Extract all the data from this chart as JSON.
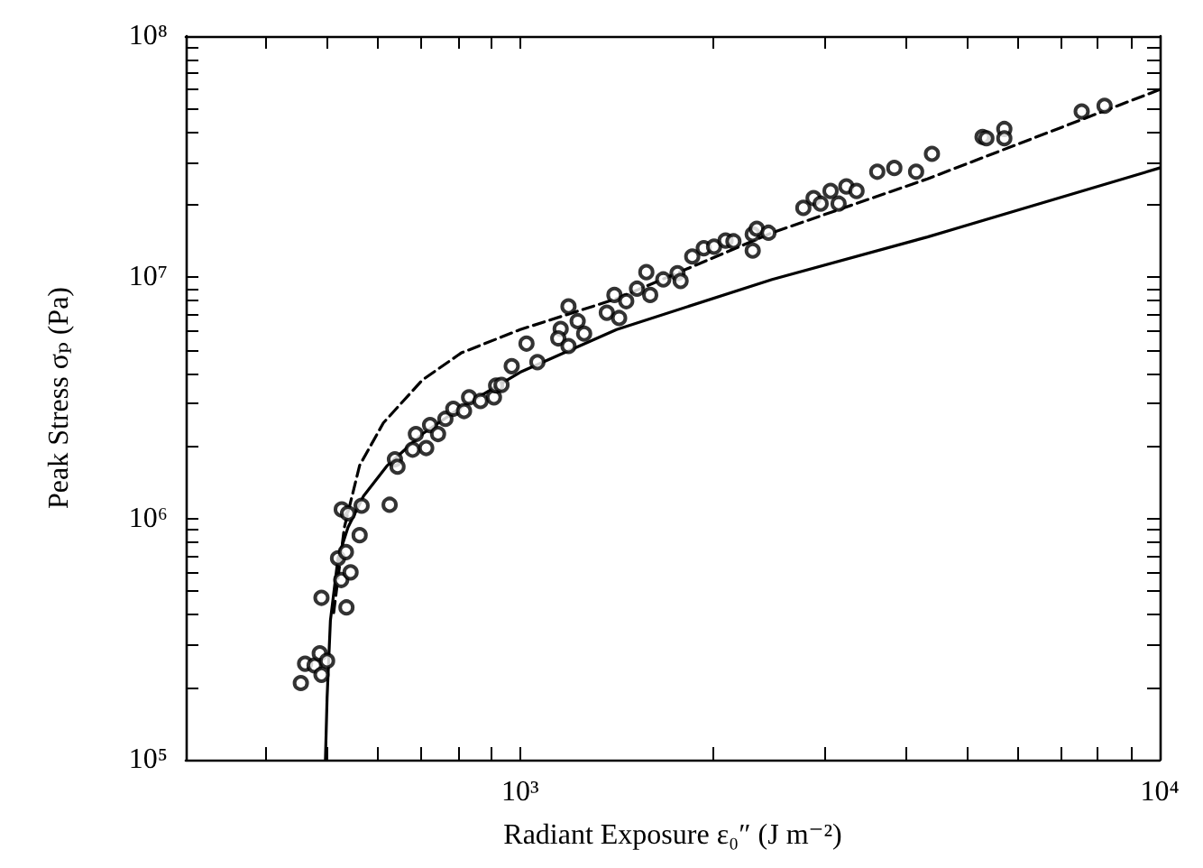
{
  "chart_data": {
    "type": "scatter",
    "xlabel": "Radiant Exposure ε₀″ (J m⁻²)",
    "ylabel": "Peak Stress σₚ (Pa)",
    "log": "xy",
    "marker": "circle",
    "xlim": [
      300,
      10000
    ],
    "ylim": [
      100000,
      100000000
    ],
    "xticks": [
      {
        "value": 400,
        "label": null
      },
      {
        "value": 500,
        "label": null
      },
      {
        "value": 600,
        "label": null
      },
      {
        "value": 700,
        "label": null
      },
      {
        "value": 800,
        "label": null
      },
      {
        "value": 900,
        "label": null
      },
      {
        "value": 1000,
        "label": "10³"
      },
      {
        "value": 2000,
        "label": null
      },
      {
        "value": 3000,
        "label": null
      },
      {
        "value": 4000,
        "label": null
      },
      {
        "value": 5000,
        "label": null
      },
      {
        "value": 6000,
        "label": null
      },
      {
        "value": 7000,
        "label": null
      },
      {
        "value": 8000,
        "label": null
      },
      {
        "value": 9000,
        "label": null
      },
      {
        "value": 10000,
        "label": "10⁴"
      }
    ],
    "yticks": [
      {
        "value": 100000,
        "label": "10⁵"
      },
      {
        "value": 200000,
        "label": null
      },
      {
        "value": 300000,
        "label": null
      },
      {
        "value": 400000,
        "label": null
      },
      {
        "value": 500000,
        "label": null
      },
      {
        "value": 600000,
        "label": null
      },
      {
        "value": 700000,
        "label": null
      },
      {
        "value": 800000,
        "label": null
      },
      {
        "value": 900000,
        "label": null
      },
      {
        "value": 1000000,
        "label": "10⁶"
      },
      {
        "value": 2000000,
        "label": null
      },
      {
        "value": 3000000,
        "label": null
      },
      {
        "value": 4000000,
        "label": null
      },
      {
        "value": 5000000,
        "label": null
      },
      {
        "value": 6000000,
        "label": null
      },
      {
        "value": 7000000,
        "label": null
      },
      {
        "value": 8000000,
        "label": null
      },
      {
        "value": 9000000,
        "label": null
      },
      {
        "value": 10000000,
        "label": "10⁷"
      },
      {
        "value": 20000000,
        "label": null
      },
      {
        "value": 30000000,
        "label": null
      },
      {
        "value": 40000000,
        "label": null
      },
      {
        "value": 50000000,
        "label": null
      },
      {
        "value": 60000000,
        "label": null
      },
      {
        "value": 70000000,
        "label": null
      },
      {
        "value": 80000000,
        "label": null
      },
      {
        "value": 90000000,
        "label": null
      },
      {
        "value": 100000000,
        "label": "10⁸"
      }
    ],
    "series": [
      {
        "type": "line",
        "line_style": "solid",
        "marker": "none",
        "color": "#000000",
        "x": [
          496,
          499,
          505,
          519,
          538,
          569,
          620,
          703,
          809,
          1000,
          1415,
          2477,
          4335,
          10000
        ],
        "values": [
          100000,
          181000,
          378000,
          684000,
          919000,
          1240000,
          1660000,
          2240000,
          2890000,
          4040000,
          6070000,
          9800000,
          14700000,
          28400000
        ]
      },
      {
        "type": "line",
        "line_style": "dashed",
        "marker": "none",
        "color": "#000000",
        "x": [
          511,
          531,
          561,
          611,
          703,
          809,
          1000,
          1415,
          2477,
          4335,
          10000
        ],
        "values": [
          407000,
          919000,
          1660000,
          2490000,
          3750000,
          4860000,
          6070000,
          8150000,
          15300000,
          25600000,
          60000000
        ]
      },
      {
        "color": "#000000",
        "x": [
          454,
          461,
          477,
          486,
          489,
          499,
          489,
          535,
          525,
          543,
          519,
          534,
          526,
          538,
          561,
          565,
          625,
          637,
          643,
          679,
          687,
          713,
          723,
          744,
          764,
          786,
          817,
          832,
          867,
          910,
          917,
          935,
          970,
          1023,
          1064,
          1157,
          1147,
          1190,
          1190,
          1230,
          1259,
          1366,
          1404,
          1428,
          1465,
          1523,
          1575,
          1597,
          1674,
          1762,
          1782,
          1858,
          1937,
          2010,
          2095,
          2155,
          2310,
          2310,
          2344,
          2445,
          2772,
          2876,
          2950,
          3057,
          3147,
          3236,
          3357,
          3617,
          3846,
          4160,
          4404,
          5284,
          5358,
          5715,
          5715,
          7551,
          8199
        ],
        "values": [
          208000,
          250000,
          246000,
          276000,
          225000,
          257000,
          469000,
          428000,
          556000,
          598000,
          684000,
          726000,
          1090000,
          1050000,
          853000,
          1130000,
          1140000,
          1760000,
          1640000,
          1930000,
          2240000,
          1960000,
          2440000,
          2240000,
          2590000,
          2850000,
          2790000,
          3180000,
          3070000,
          3180000,
          3560000,
          3580000,
          4280000,
          5310000,
          4450000,
          6110000,
          5580000,
          7570000,
          5190000,
          6580000,
          5840000,
          7130000,
          8450000,
          6780000,
          7960000,
          8970000,
          10500000,
          8450000,
          9800000,
          10400000,
          9660000,
          12200000,
          13200000,
          13400000,
          14200000,
          14100000,
          12900000,
          15100000,
          15900000,
          15300000,
          19400000,
          21300000,
          20200000,
          22800000,
          20200000,
          23800000,
          22800000,
          27400000,
          28400000,
          27400000,
          32500000,
          38200000,
          37700000,
          41200000,
          37700000,
          48700000,
          51400000
        ]
      }
    ]
  }
}
